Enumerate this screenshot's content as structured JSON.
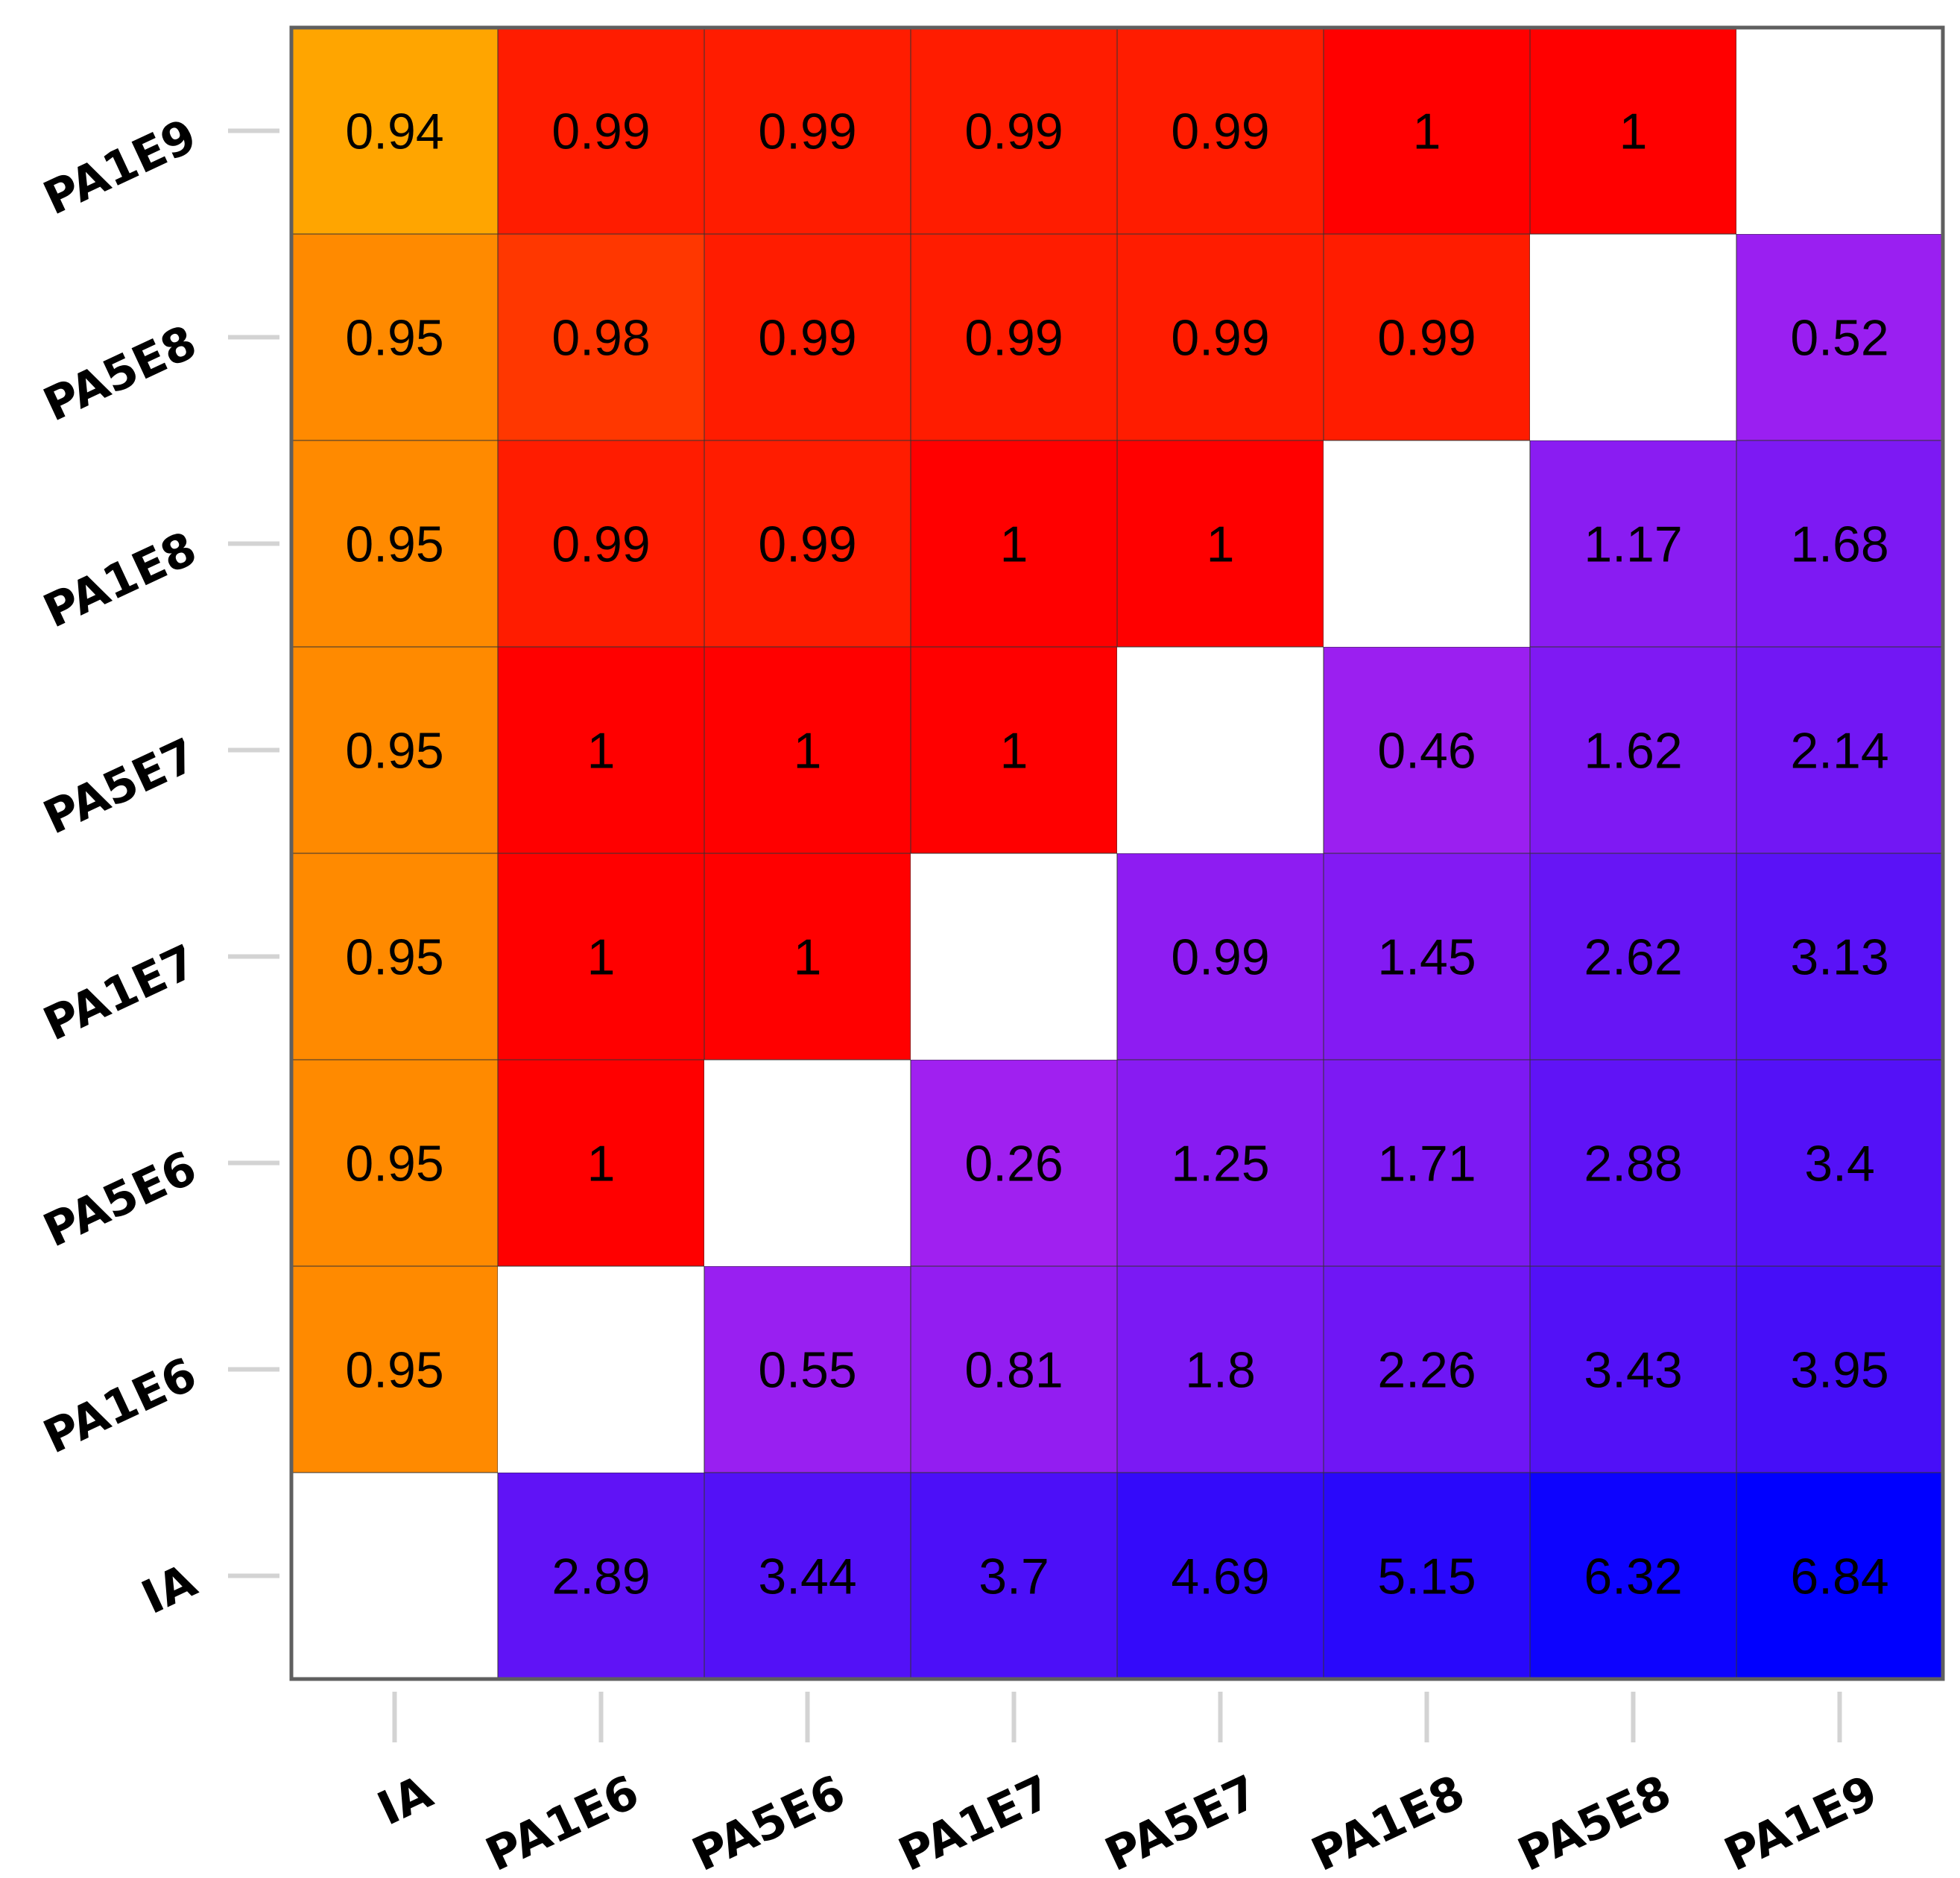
{
  "chart_data": {
    "type": "heatmap",
    "x_categories": [
      "IA",
      "PA1E6",
      "PA5E6",
      "PA1E7",
      "PA5E7",
      "PA1E8",
      "PA5E8",
      "PA1E9"
    ],
    "y_categories": [
      "IA",
      "PA1E6",
      "PA5E6",
      "PA1E7",
      "PA5E7",
      "PA1E8",
      "PA5E8",
      "PA1E9"
    ],
    "y_order": "bottom-to-top",
    "values": [
      [
        null,
        2.89,
        3.44,
        3.7,
        4.69,
        5.15,
        6.32,
        6.84
      ],
      [
        0.95,
        null,
        0.55,
        0.81,
        1.8,
        2.26,
        3.43,
        3.95
      ],
      [
        0.95,
        1,
        null,
        0.26,
        1.25,
        1.71,
        2.88,
        3.4
      ],
      [
        0.95,
        1,
        1,
        null,
        0.99,
        1.45,
        2.62,
        3.13
      ],
      [
        0.95,
        1,
        1,
        1,
        null,
        0.46,
        1.62,
        2.14
      ],
      [
        0.95,
        0.99,
        0.99,
        1,
        1,
        null,
        1.17,
        1.68
      ],
      [
        0.95,
        0.98,
        0.99,
        0.99,
        0.99,
        0.99,
        null,
        0.52
      ],
      [
        0.94,
        0.99,
        0.99,
        0.99,
        0.99,
        1,
        1,
        null
      ]
    ],
    "upper_triangle_color_scale": [
      "#ffa500",
      "#ff0000"
    ],
    "lower_triangle_color_scale": [
      "#a020f0",
      "#0000ff"
    ],
    "diagonal_color": "#ffffff",
    "grid": true,
    "legend": "none",
    "title": "",
    "xlabel": "",
    "ylabel": ""
  }
}
